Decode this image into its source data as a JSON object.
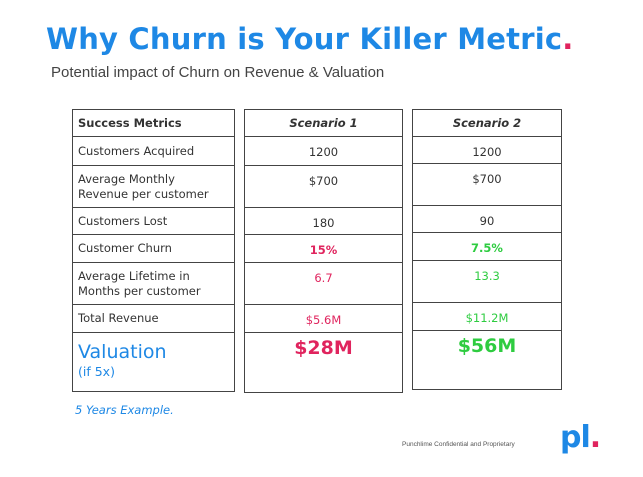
{
  "header": {
    "title": "Why Churn is Your Killer Metric",
    "title_dot": ".",
    "subtitle": "Potential impact of Churn on Revenue & Valuation"
  },
  "colors": {
    "accent_blue": "#1e88e5",
    "accent_pink": "#e0245e",
    "accent_green": "#2ecc40"
  },
  "metrics": {
    "header": "Success Metrics",
    "rows": [
      "Customers Acquired",
      "Average Monthly Revenue per customer",
      "Customers Lost",
      "Customer Churn",
      "Average Lifetime in Months per customer",
      "Total Revenue"
    ],
    "valuation_label": "Valuation",
    "valuation_sub": "(if 5x)"
  },
  "scenarios": [
    {
      "name": "Scenario 1",
      "values": [
        "1200",
        "$700",
        "180",
        "15%",
        "6.7",
        "$5.6M"
      ],
      "valuation": "$28M"
    },
    {
      "name": "Scenario 2",
      "values": [
        "1200",
        "$700",
        "90",
        "7.5%",
        "13.3",
        "$11.2M"
      ],
      "valuation": "$56M"
    }
  ],
  "note": "5 Years Example.",
  "footer": {
    "confidential": "Punchlime Confidential and Proprietary",
    "logo_text": "pl",
    "logo_dot": "."
  }
}
